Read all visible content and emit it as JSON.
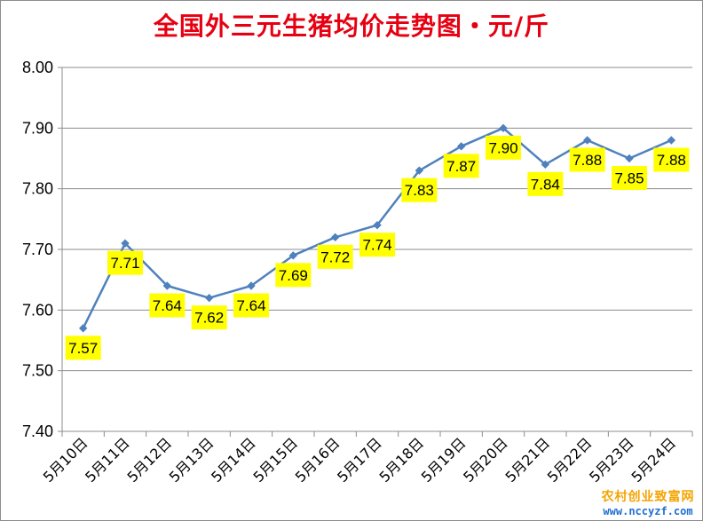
{
  "chart_data": {
    "type": "line",
    "title": "全国外三元生猪均价走势图・元/斤",
    "categories": [
      "5月10日",
      "5月11日",
      "5月12日",
      "5月13日",
      "5月14日",
      "5月15日",
      "5月16日",
      "5月17日",
      "5月18日",
      "5月19日",
      "5月20日",
      "5月21日",
      "5月22日",
      "5月23日",
      "5月24日"
    ],
    "values": [
      7.57,
      7.71,
      7.64,
      7.62,
      7.64,
      7.69,
      7.72,
      7.74,
      7.83,
      7.87,
      7.9,
      7.84,
      7.88,
      7.85,
      7.88
    ],
    "data_labels": [
      "7.57",
      "7.71",
      "7.64",
      "7.62",
      "7.64",
      "7.69",
      "7.72",
      "7.74",
      "7.83",
      "7.87",
      "7.90",
      "7.84",
      "7.88",
      "7.85",
      "7.88"
    ],
    "yticks": [
      "7.40",
      "7.50",
      "7.60",
      "7.70",
      "7.80",
      "7.90",
      "8.00"
    ],
    "ylim": [
      7.4,
      8.0
    ],
    "ystep": 0.1,
    "grid": true,
    "line_color": "#4f81bd",
    "label_bg": "#ffff00"
  },
  "watermark": {
    "name": "农村创业致富网",
    "url": "www.nccyzf.com"
  }
}
